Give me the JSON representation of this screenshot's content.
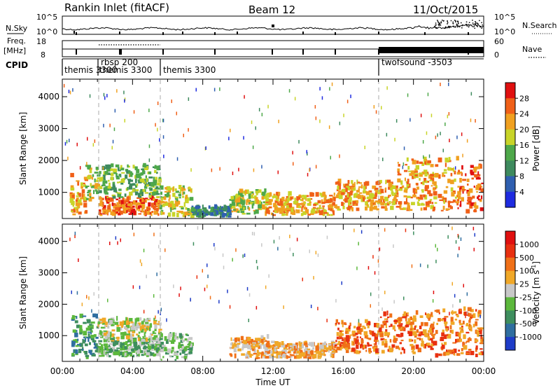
{
  "header": {
    "station": "Rankin Inlet (fitACF)",
    "beam": "Beam 12",
    "date": "11/Oct/2015"
  },
  "noise_panel": {
    "left_label": "N.Sky",
    "right_label": "N.Search",
    "tick_top": "10^5",
    "tick_bottom": "10^0",
    "right_tick_top": "10^5",
    "right_tick_bottom": "10^0"
  },
  "freq_panel": {
    "left_label_1": "Freq.",
    "left_label_2": "[MHz]",
    "tick_top": "18",
    "tick_bottom": "8",
    "right_label": "Nave",
    "right_tick_top": "60",
    "right_tick_bottom": "0"
  },
  "cpid_panel": {
    "label": "CPID",
    "modes": [
      {
        "name": "themis 3300",
        "start_hour": 0
      },
      {
        "name": "rbsp 200",
        "start_hour": 2
      },
      {
        "name": "themis 3300",
        "start_hour": 2
      },
      {
        "name": "themis 3300",
        "start_hour": 5.5
      },
      {
        "name": "twofsound -3503",
        "start_hour": 18
      }
    ]
  },
  "chart_data": [
    {
      "type": "heatmap",
      "name": "power",
      "ylabel": "Slant Range [km]",
      "xlabel": "",
      "xlim": [
        0,
        24
      ],
      "ylim": [
        180,
        4550
      ],
      "yticks": [
        "1000",
        "2000",
        "3000",
        "4000"
      ],
      "colorbar": {
        "label": "Power [dB]",
        "ticks": [
          "4",
          "8",
          "12",
          "16",
          "20",
          "24",
          "28"
        ],
        "colors": [
          "#1e2be0",
          "#2f5fb0",
          "#3e8a5e",
          "#4ea84a",
          "#c8d428",
          "#f0a020",
          "#f06018",
          "#e01010"
        ]
      },
      "regions": [
        {
          "hours": [
            0.4,
            1.3
          ],
          "range": [
            250,
            1500
          ],
          "level": 5
        },
        {
          "hours": [
            1.3,
            2.0
          ],
          "range": [
            700,
            1800
          ],
          "level": 4
        },
        {
          "hours": [
            2.0,
            5.5
          ],
          "range": [
            250,
            800
          ],
          "level": 6
        },
        {
          "hours": [
            2.0,
            5.5
          ],
          "range": [
            800,
            1800
          ],
          "level": 3
        },
        {
          "hours": [
            5.5,
            7.3
          ],
          "range": [
            200,
            1100
          ],
          "level": 4
        },
        {
          "hours": [
            7.3,
            9.5
          ],
          "range": [
            200,
            500
          ],
          "level": 2
        },
        {
          "hours": [
            9.5,
            11.5
          ],
          "range": [
            300,
            1000
          ],
          "level": 4
        },
        {
          "hours": [
            11.5,
            15.5
          ],
          "range": [
            250,
            900
          ],
          "level": 5
        },
        {
          "hours": [
            15.5,
            19.0
          ],
          "range": [
            400,
            1300
          ],
          "level": 5
        },
        {
          "hours": [
            19.0,
            22.5
          ],
          "range": [
            400,
            2000
          ],
          "level": 5
        },
        {
          "hours": [
            22.5,
            24.0
          ],
          "range": [
            300,
            1800
          ],
          "level": 6
        }
      ]
    },
    {
      "type": "heatmap",
      "name": "velocity",
      "ylabel": "Slant Range [km]",
      "xlabel": "Time UT",
      "xlim": [
        0,
        24
      ],
      "ylim": [
        180,
        4550
      ],
      "xticks": [
        "00:00",
        "04:00",
        "08:00",
        "12:00",
        "16:00",
        "20:00",
        "00:00"
      ],
      "yticks": [
        "1000",
        "2000",
        "3000",
        "4000"
      ],
      "colorbar": {
        "label": "Velocity [m s",
        "label_exp": "-1",
        "label_end": "]",
        "ticks": [
          "1000",
          "500",
          "100",
          "25",
          "-25",
          "-100",
          "-500",
          "-1000"
        ],
        "colors": [
          "#1e3cc8",
          "#2f6ea0",
          "#3e8e5e",
          "#5cb83c",
          "#c8c8c8",
          "#f0a828",
          "#f07018",
          "#e83010",
          "#e01010"
        ]
      },
      "regions": [
        {
          "hours": [
            0.5,
            2.0
          ],
          "range": [
            250,
            1600
          ],
          "level": 2
        },
        {
          "hours": [
            2.0,
            5.5
          ],
          "range": [
            300,
            800
          ],
          "level": 3
        },
        {
          "hours": [
            2.0,
            5.5
          ],
          "range": [
            800,
            1500
          ],
          "level": 4
        },
        {
          "hours": [
            5.5,
            7.3
          ],
          "range": [
            200,
            1000
          ],
          "level": 3
        },
        {
          "hours": [
            9.5,
            12.0
          ],
          "range": [
            250,
            900
          ],
          "level": 5
        },
        {
          "hours": [
            12.0,
            15.5
          ],
          "range": [
            250,
            700
          ],
          "level": 5
        },
        {
          "hours": [
            15.5,
            18.0
          ],
          "range": [
            400,
            1400
          ],
          "level": 6
        },
        {
          "hours": [
            18.0,
            21.0
          ],
          "range": [
            400,
            1700
          ],
          "level": 6
        },
        {
          "hours": [
            21.0,
            24.0
          ],
          "range": [
            300,
            1800
          ],
          "level": 6
        }
      ]
    }
  ]
}
